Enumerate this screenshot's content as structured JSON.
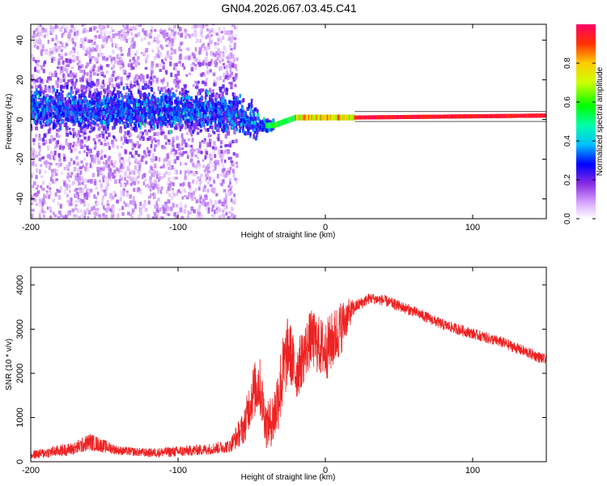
{
  "title": "GN04.2026.067.03.45.C41",
  "chart_data": [
    {
      "type": "heatmap",
      "name": "spectrogram",
      "xlabel": "Height of straight line (km)",
      "ylabel": "Frequency (Hz)",
      "xlim": [
        -200,
        150
      ],
      "ylim": [
        -50,
        48
      ],
      "xticks": [
        -200,
        -100,
        0,
        100
      ],
      "yticks": [
        -40,
        -20,
        0,
        20,
        40
      ],
      "colorbar": {
        "label": "Normalized spectral amplitude",
        "range": [
          0,
          1
        ],
        "ticks": [
          "0.0",
          "0.2",
          "0.4",
          "0.6",
          "0.8"
        ]
      },
      "ridge": {
        "description_points_km_hz": [
          [
            -200,
            5
          ],
          [
            -100,
            5
          ],
          [
            -60,
            3
          ],
          [
            -45,
            -3
          ],
          [
            -35,
            -3
          ],
          [
            -20,
            1
          ],
          [
            0,
            1
          ],
          [
            20,
            1
          ],
          [
            150,
            2
          ]
        ],
        "strong_from_km": -30
      }
    },
    {
      "type": "line",
      "name": "snr",
      "xlabel": "Height of straight line (km)",
      "ylabel": "SNR (10 * v/v)",
      "xlim": [
        -200,
        150
      ],
      "ylim": [
        0,
        4400
      ],
      "xticks": [
        -200,
        -100,
        0,
        100
      ],
      "yticks": [
        0,
        1000,
        2000,
        3000,
        4000
      ],
      "color": "#ee2222",
      "envelope": {
        "x": [
          -200,
          -170,
          -160,
          -140,
          -120,
          -100,
          -80,
          -65,
          -55,
          -50,
          -45,
          -40,
          -35,
          -30,
          -25,
          -20,
          -10,
          0,
          10,
          15,
          20,
          30,
          40,
          60,
          80,
          100,
          120,
          150
        ],
        "mean": [
          150,
          300,
          450,
          250,
          200,
          230,
          280,
          350,
          800,
          1500,
          1800,
          800,
          1000,
          1800,
          2600,
          2000,
          2800,
          2500,
          3000,
          3300,
          3500,
          3700,
          3650,
          3400,
          3100,
          2900,
          2700,
          2300
        ],
        "spread": [
          200,
          300,
          400,
          200,
          200,
          250,
          250,
          300,
          800,
          1200,
          1400,
          1000,
          1300,
          1800,
          1500,
          1300,
          1300,
          1400,
          1300,
          800,
          300,
          250,
          250,
          250,
          250,
          250,
          250,
          250
        ]
      }
    }
  ]
}
